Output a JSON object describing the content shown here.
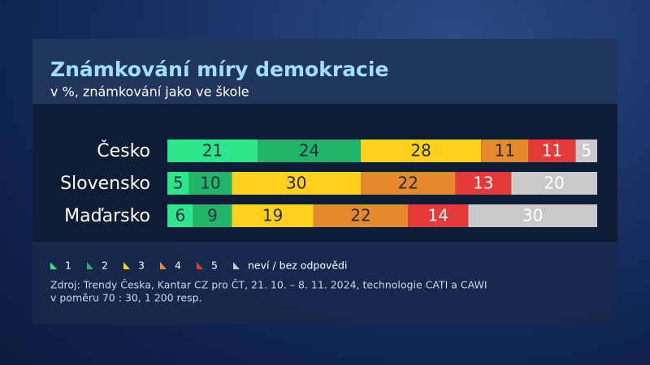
{
  "chart_data": {
    "type": "stacked-bar-horizontal",
    "title": "Známkování míry demokracie",
    "subtitle": "v %, známkování jako ve škole",
    "categories": [
      "Česko",
      "Slovensko",
      "Maďarsko"
    ],
    "series": [
      {
        "name": "1",
        "color": "#2fe58a",
        "label_color": "#1b2c44",
        "values": [
          21,
          5,
          6
        ]
      },
      {
        "name": "2",
        "color": "#22b468",
        "label_color": "#1b2c44",
        "values": [
          24,
          10,
          9
        ]
      },
      {
        "name": "3",
        "color": "#ffd11c",
        "label_color": "#1b2c44",
        "values": [
          28,
          30,
          19
        ]
      },
      {
        "name": "4",
        "color": "#e6892c",
        "label_color": "#1b2c44",
        "values": [
          11,
          22,
          22
        ]
      },
      {
        "name": "5",
        "color": "#e53a3a",
        "label_color": "#ffffff",
        "values": [
          11,
          13,
          14
        ]
      },
      {
        "name": "neví / bez odpovědi",
        "color": "#c9c9c9",
        "label_color": "#ffffff",
        "values": [
          5,
          20,
          30
        ]
      }
    ],
    "notes": [
      "Zdroj: Trendy Česka, Kantar CZ pro ČT, 21. 10. – 8. 11. 2024, technologie CATI a CAWI",
      "v poměru 70 : 30, 1 200 resp."
    ]
  }
}
